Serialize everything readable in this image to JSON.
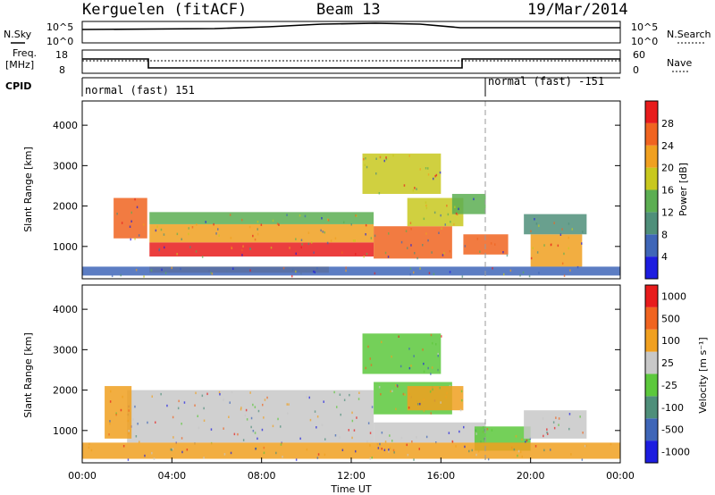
{
  "header": {
    "station": "Kerguelen (fitACF)",
    "beam": "Beam 13",
    "date": "19/Mar/2014"
  },
  "top_panels": {
    "nsky_label": "N.Sky",
    "nsearch_label": "N.Search",
    "nsky_ticks": [
      "10^5",
      "10^0"
    ],
    "nsearch_ticks": [
      "10^5",
      "10^0"
    ],
    "freq_label": [
      "Freq.",
      "[MHz]"
    ],
    "freq_ticks": [
      "18",
      "8"
    ],
    "nave_label": "Nave",
    "nave_ticks": [
      "60",
      "0"
    ],
    "cpid_label": "CPID",
    "cpid_segments": [
      {
        "label": "normal (fast) 151",
        "start_hour": 0
      },
      {
        "label": "normal (fast) -151",
        "start_hour": 18
      }
    ]
  },
  "chart_data": [
    {
      "type": "heatmap",
      "name": "power",
      "ylabel": "Slant Range [km]",
      "xlim": [
        0,
        24
      ],
      "ylim": [
        200,
        4600
      ],
      "yticks": [
        "1000",
        "2000",
        "3000",
        "4000"
      ],
      "colorbar_label": "Power [dB]",
      "colorbar_ticks": [
        "4",
        "8",
        "12",
        "16",
        "20",
        "24",
        "28"
      ],
      "colorbar_colors": [
        "#1d1de0",
        "#3f66b8",
        "#4f8f7a",
        "#5cae52",
        "#c8c81e",
        "#f0a020",
        "#f06420",
        "#e81c1c"
      ],
      "regions": [
        {
          "t0": 3.0,
          "t1": 13.0,
          "r0": 750,
          "r1": 1100,
          "level": 0.95
        },
        {
          "t0": 3.0,
          "t1": 13.0,
          "r0": 1100,
          "r1": 1550,
          "level": 0.7
        },
        {
          "t0": 3.0,
          "t1": 13.0,
          "r0": 1550,
          "r1": 1850,
          "level": 0.45
        },
        {
          "t0": 1.4,
          "t1": 2.9,
          "r0": 1200,
          "r1": 2200,
          "level": 0.85
        },
        {
          "t0": 13.0,
          "t1": 16.5,
          "r0": 700,
          "r1": 1500,
          "level": 0.85
        },
        {
          "t0": 14.5,
          "t1": 17.0,
          "r0": 1500,
          "r1": 2200,
          "level": 0.6
        },
        {
          "t0": 16.5,
          "t1": 18.0,
          "r0": 1800,
          "r1": 2300,
          "level": 0.4
        },
        {
          "t0": 12.5,
          "t1": 16.0,
          "r0": 2300,
          "r1": 3300,
          "level": 0.55
        },
        {
          "t0": 17.0,
          "t1": 19.0,
          "r0": 800,
          "r1": 1300,
          "level": 0.8
        },
        {
          "t0": 20.0,
          "t1": 22.3,
          "r0": 500,
          "r1": 1300,
          "level": 0.75
        },
        {
          "t0": 19.7,
          "t1": 22.5,
          "r0": 1300,
          "r1": 1800,
          "level": 0.25
        },
        {
          "t0": 3.0,
          "t1": 11.0,
          "r0": 350,
          "r1": 500,
          "level": 0.75
        },
        {
          "t0": 0.0,
          "t1": 24.0,
          "r0": 280,
          "r1": 500,
          "level": 0.1
        }
      ]
    },
    {
      "type": "heatmap",
      "name": "velocity",
      "xlabel": "Time UT",
      "ylabel": "Slant Range [km]",
      "xlim": [
        0,
        24
      ],
      "ylim": [
        200,
        4600
      ],
      "xticks": [
        "00:00",
        "04:00",
        "08:00",
        "12:00",
        "16:00",
        "20:00",
        "00:00"
      ],
      "yticks": [
        "1000",
        "2000",
        "3000",
        "4000"
      ],
      "colorbar_label": "Velocity [m s⁻¹]",
      "colorbar_ticks": [
        "1000",
        "500",
        "100",
        "25",
        "-25",
        "-100",
        "-500",
        "-1000"
      ],
      "colorbar_colors": [
        "#1d1de0",
        "#3f66b8",
        "#4f8f7a",
        "#5cc83c",
        "#c8c8c8",
        "#f0a020",
        "#f06420",
        "#e81c1c"
      ],
      "regions": [
        {
          "t0": 2.0,
          "t1": 13.0,
          "r0": 700,
          "r1": 2000,
          "level": "gray"
        },
        {
          "t0": 1.0,
          "t1": 2.2,
          "r0": 800,
          "r1": 2100,
          "level": "orange"
        },
        {
          "t0": 13.0,
          "t1": 16.5,
          "r0": 1400,
          "r1": 2200,
          "level": "green"
        },
        {
          "t0": 14.5,
          "t1": 17.0,
          "r0": 1500,
          "r1": 2100,
          "level": "orange"
        },
        {
          "t0": 12.5,
          "t1": 16.0,
          "r0": 2400,
          "r1": 3400,
          "level": "green"
        },
        {
          "t0": 13.0,
          "t1": 18.0,
          "r0": 700,
          "r1": 1200,
          "level": "gray"
        },
        {
          "t0": 17.5,
          "t1": 20.0,
          "r0": 500,
          "r1": 1100,
          "level": "green"
        },
        {
          "t0": 19.7,
          "t1": 22.5,
          "r0": 800,
          "r1": 1500,
          "level": "gray"
        },
        {
          "t0": 0.0,
          "t1": 24.0,
          "r0": 300,
          "r1": 700,
          "level": "orange"
        }
      ]
    }
  ]
}
